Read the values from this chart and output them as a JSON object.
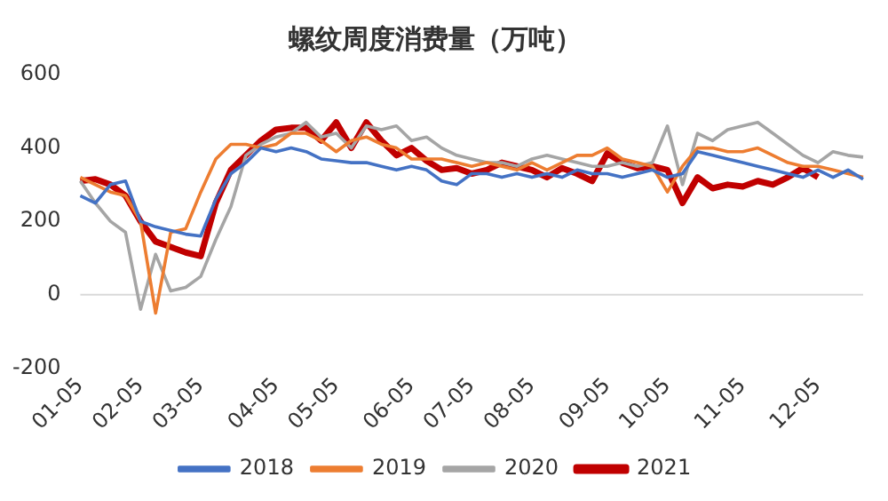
{
  "chart_data": {
    "type": "line",
    "title": "螺纹周度消费量（万吨）",
    "categories": [
      "01-05",
      null,
      null,
      null,
      "02-05",
      null,
      null,
      null,
      "03-05",
      null,
      null,
      null,
      null,
      "04-05",
      null,
      null,
      null,
      "05-05",
      null,
      null,
      null,
      null,
      "06-05",
      null,
      null,
      null,
      "07-05",
      null,
      null,
      null,
      "08-05",
      null,
      null,
      null,
      null,
      "09-05",
      null,
      null,
      null,
      "10-05",
      null,
      null,
      null,
      null,
      "11-05",
      null,
      null,
      null,
      null,
      "12-05",
      null,
      null,
      null
    ],
    "series": [
      {
        "name": "2018",
        "color": "#4472c4",
        "values": [
          270,
          250,
          300,
          310,
          200,
          185,
          175,
          165,
          160,
          260,
          330,
          360,
          400,
          390,
          400,
          390,
          370,
          365,
          360,
          360,
          350,
          340,
          350,
          340,
          310,
          300,
          330,
          330,
          320,
          330,
          320,
          330,
          320,
          340,
          330,
          330,
          320,
          330,
          340,
          320,
          330,
          390,
          380,
          370,
          360,
          350,
          340,
          330,
          320,
          340,
          320,
          340,
          315
        ]
      },
      {
        "name": "2019",
        "color": "#ed7d31",
        "values": [
          320,
          300,
          280,
          270,
          200,
          -50,
          170,
          180,
          280,
          370,
          410,
          410,
          400,
          410,
          440,
          440,
          420,
          390,
          420,
          430,
          410,
          400,
          370,
          370,
          370,
          360,
          350,
          360,
          350,
          340,
          360,
          340,
          360,
          380,
          380,
          400,
          370,
          360,
          350,
          280,
          350,
          400,
          400,
          390,
          390,
          400,
          380,
          360,
          350,
          350,
          340,
          330,
          320
        ]
      },
      {
        "name": "2020",
        "color": "#a5a5a5",
        "values": [
          310,
          250,
          200,
          170,
          -40,
          110,
          10,
          20,
          50,
          150,
          240,
          380,
          410,
          430,
          440,
          470,
          430,
          440,
          400,
          460,
          450,
          460,
          420,
          430,
          400,
          380,
          370,
          360,
          360,
          350,
          370,
          380,
          370,
          360,
          350,
          350,
          360,
          350,
          360,
          460,
          300,
          440,
          420,
          450,
          460,
          470,
          440,
          410,
          380,
          360,
          390,
          380,
          375
        ]
      },
      {
        "name": "2021",
        "color": "#c00000",
        "values": [
          310,
          315,
          300,
          270,
          200,
          145,
          130,
          115,
          105,
          250,
          340,
          380,
          420,
          450,
          455,
          455,
          420,
          470,
          400,
          470,
          420,
          380,
          400,
          365,
          340,
          345,
          330,
          340,
          360,
          350,
          340,
          320,
          345,
          330,
          310,
          385,
          360,
          345,
          350,
          340,
          250,
          320,
          290,
          300,
          295,
          310,
          300,
          320,
          345,
          320,
          null,
          null,
          null
        ]
      }
    ],
    "ylim": [
      -200,
      600
    ],
    "yticks": [
      -200,
      0,
      200,
      400,
      600
    ],
    "grid": false,
    "legend": "bottom",
    "ref_lines": [
      {
        "axis": "y",
        "value": 0,
        "color": "#d9d9d9"
      }
    ]
  }
}
